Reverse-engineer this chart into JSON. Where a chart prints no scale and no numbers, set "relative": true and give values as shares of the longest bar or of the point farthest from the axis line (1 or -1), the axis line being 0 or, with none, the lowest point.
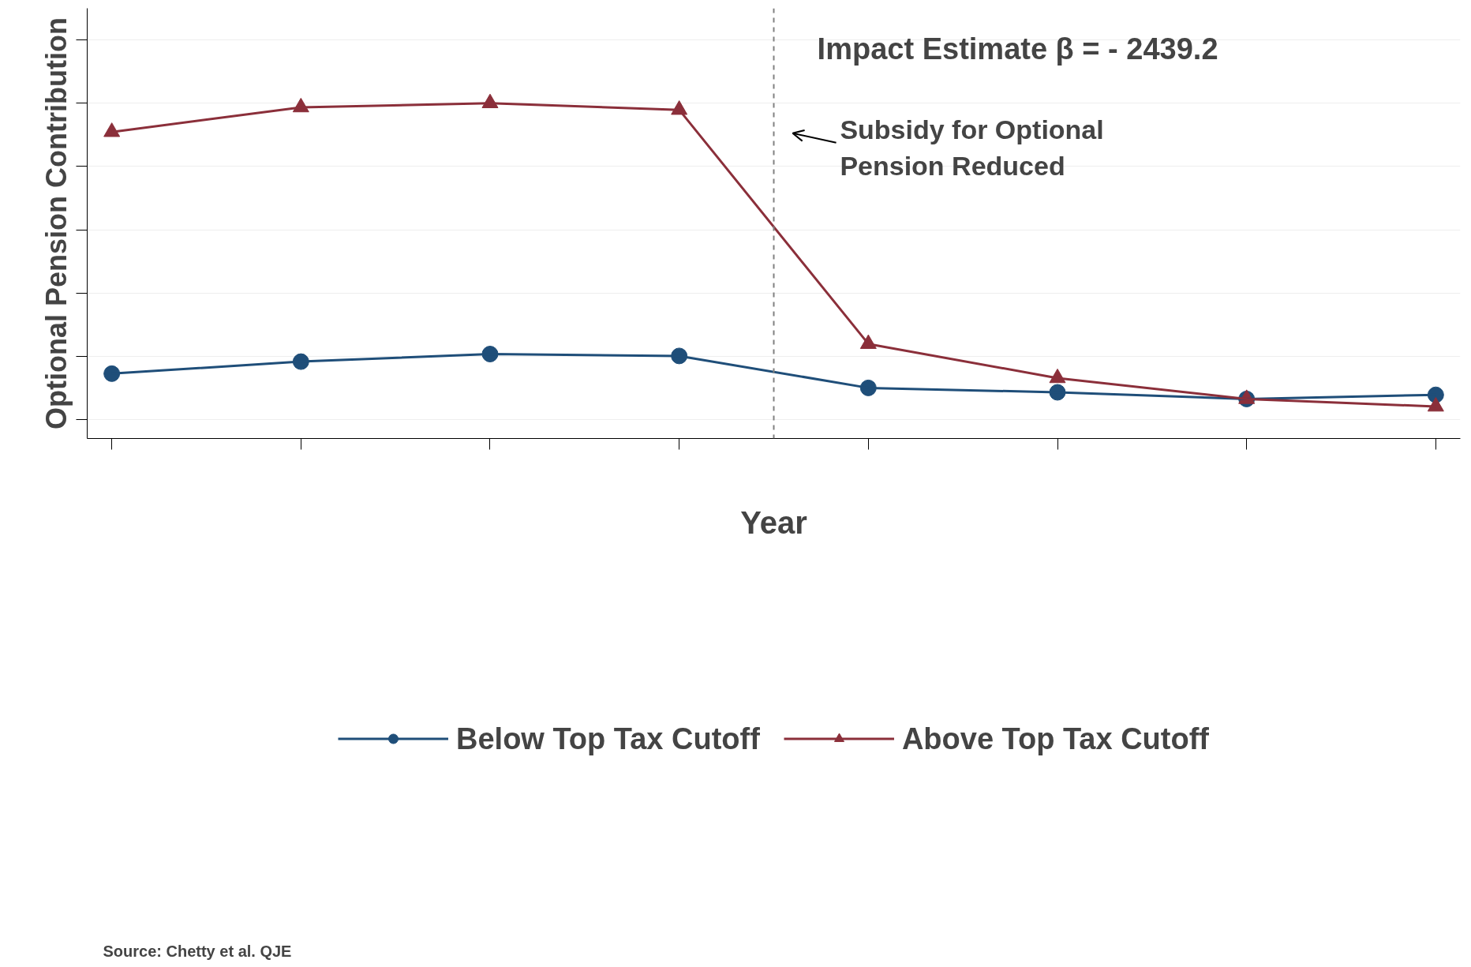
{
  "chart_data": {
    "type": "line",
    "xlabel": "Year",
    "ylabel": "Optional Pension Contribution",
    "relative": true,
    "categories": [
      null,
      null,
      null,
      null,
      null,
      null,
      null,
      null
    ],
    "series": [
      {
        "name": "Below Top Tax Cutoff",
        "color": "#1f4e79",
        "marker": "circle",
        "values": [
          0.145,
          0.183,
          0.207,
          0.201,
          0.1,
          0.086,
          0.065,
          0.078
        ]
      },
      {
        "name": "Above Top Tax Cutoff",
        "color": "#8b2f3a",
        "marker": "triangle",
        "values": [
          0.909,
          0.987,
          1.0,
          0.979,
          0.239,
          0.131,
          0.065,
          0.041
        ]
      }
    ],
    "annotations": [
      "Impact Estimate β = - 2439.2",
      "Subsidy for Optional\nPension Reduced",
      "Source: Chetty et al. QJE"
    ],
    "grid": "y",
    "legend": "bottom",
    "line_style": "solid"
  }
}
